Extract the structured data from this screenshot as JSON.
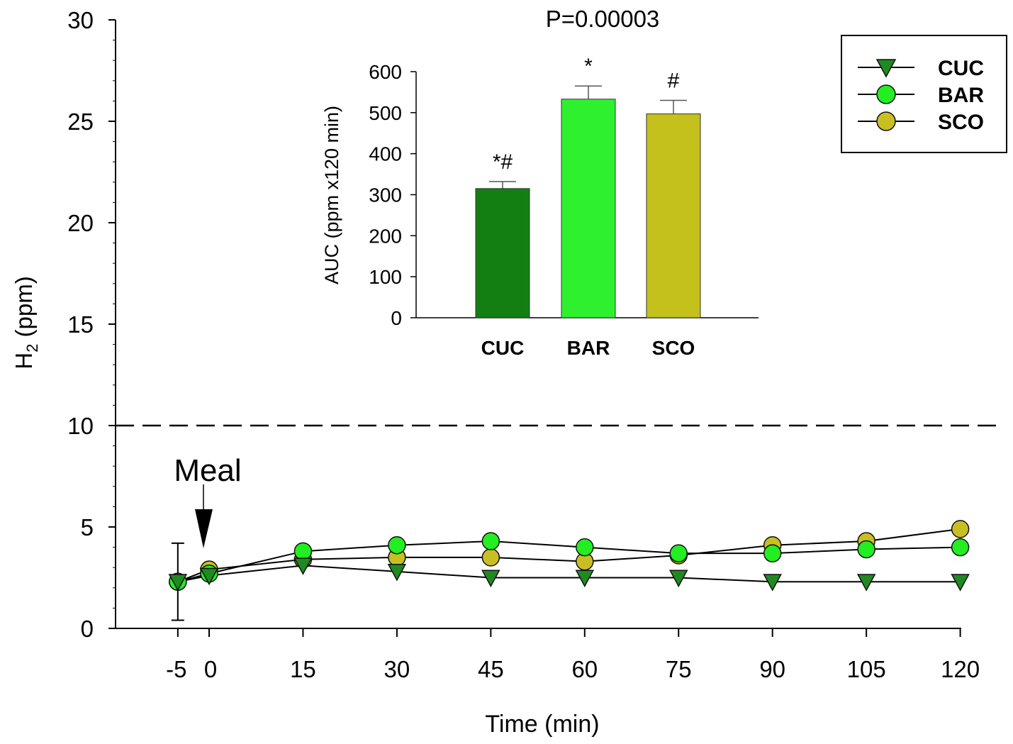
{
  "chart_data": [
    {
      "type": "line",
      "title": "",
      "xlabel": "Time (min)",
      "ylabel": "H2 (ppm)",
      "ylabel_main": "H",
      "ylabel_sub": "2",
      "ylabel_rest": " (ppm)",
      "x": [
        -5,
        0,
        15,
        30,
        45,
        60,
        75,
        90,
        105,
        120
      ],
      "x_tick_labels": [
        "-5",
        "0",
        "15",
        "30",
        "45",
        "60",
        "75",
        "90",
        "105",
        "120"
      ],
      "ylim": [
        0,
        30
      ],
      "y_ticks": [
        0,
        5,
        10,
        15,
        20,
        25,
        30
      ],
      "y_tick_labels": [
        "0",
        "5",
        "10",
        "15",
        "20",
        "25",
        "30"
      ],
      "threshold": 10,
      "annotation": {
        "text": "Meal",
        "x": 0
      },
      "series": [
        {
          "name": "CUC",
          "marker": "triangle-down",
          "color": "#1f8a1f",
          "values": [
            2.3,
            2.6,
            3.1,
            2.8,
            2.5,
            2.5,
            2.5,
            2.3,
            2.3,
            2.3
          ]
        },
        {
          "name": "BAR",
          "marker": "circle",
          "color": "#22ee22",
          "values": [
            2.3,
            2.7,
            3.8,
            4.1,
            4.3,
            4.0,
            3.7,
            3.7,
            3.9,
            4.0
          ]
        },
        {
          "name": "SCO",
          "marker": "circle",
          "color": "#c8c022",
          "values": [
            2.3,
            2.9,
            3.4,
            3.5,
            3.5,
            3.3,
            3.6,
            4.1,
            4.3,
            4.9
          ]
        }
      ],
      "error_bar": {
        "x": -5,
        "low": 0.4,
        "high": 4.2
      },
      "legend": {
        "position": "top-right",
        "entries": [
          "CUC",
          "BAR",
          "SCO"
        ]
      }
    },
    {
      "type": "bar",
      "title": "P=0.00003",
      "ylabel": "AUC (ppm x120 min)",
      "categories": [
        "CUC",
        "BAR",
        "SCO"
      ],
      "values": [
        315,
        533,
        497
      ],
      "errors": [
        17,
        32,
        33
      ],
      "colors": [
        "#137f13",
        "#2ff02f",
        "#c4c01c"
      ],
      "annotations": [
        "*#",
        "*",
        "#"
      ],
      "ylim": [
        0,
        600
      ],
      "y_ticks": [
        0,
        100,
        200,
        300,
        400,
        500,
        600
      ],
      "y_tick_labels": [
        "0",
        "100",
        "200",
        "300",
        "400",
        "500",
        "600"
      ]
    }
  ]
}
